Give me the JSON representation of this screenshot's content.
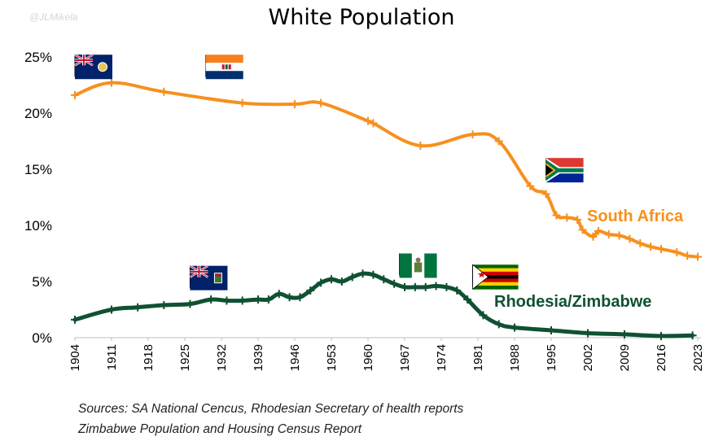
{
  "watermark": "@JLMikela",
  "sources": [
    "Sources: SA National Cencus, Rhodesian Secretary of health reports",
    "Zimbabwe Population and Housing Census Report"
  ],
  "chart_data": {
    "type": "line",
    "title": "White Population",
    "xlabel": "",
    "ylabel": "",
    "xlim": [
      1904,
      2023
    ],
    "ylim": [
      0,
      25
    ],
    "y_ticks": [
      "0%",
      "5%",
      "10%",
      "15%",
      "20%",
      "25%"
    ],
    "x_ticks": [
      "1904",
      "1911",
      "1918",
      "1925",
      "1932",
      "1939",
      "1946",
      "1953",
      "1960",
      "1967",
      "1974",
      "1981",
      "1988",
      "1995",
      "2002",
      "2009",
      "2016",
      "2023"
    ],
    "grid": false,
    "legend": "none",
    "series": [
      {
        "name": "South Africa",
        "color": "#f7901e",
        "points": [
          [
            1904,
            21.6
          ],
          [
            1911,
            22.7
          ],
          [
            1921,
            21.9
          ],
          [
            1936,
            20.9
          ],
          [
            1946,
            20.8
          ],
          [
            1951,
            20.9
          ],
          [
            1960,
            19.3
          ],
          [
            1961,
            19.1
          ],
          [
            1970,
            17.1
          ],
          [
            1980,
            18.1
          ],
          [
            1985,
            17.5
          ],
          [
            1991,
            13.5
          ],
          [
            1994,
            12.8
          ],
          [
            1996,
            10.9
          ],
          [
            1998,
            10.7
          ],
          [
            2000,
            10.5
          ],
          [
            2001,
            9.6
          ],
          [
            2003,
            9.0
          ],
          [
            2004,
            9.5
          ],
          [
            2006,
            9.2
          ],
          [
            2008,
            9.1
          ],
          [
            2010,
            8.8
          ],
          [
            2012,
            8.4
          ],
          [
            2014,
            8.1
          ],
          [
            2016,
            7.9
          ],
          [
            2019,
            7.6
          ],
          [
            2021,
            7.3
          ],
          [
            2023,
            7.2
          ]
        ]
      },
      {
        "name": "Rhodesia/Zimbabwe",
        "color": "#0f5132",
        "points": [
          [
            1904,
            1.6
          ],
          [
            1911,
            2.5
          ],
          [
            1916,
            2.7
          ],
          [
            1921,
            2.9
          ],
          [
            1926,
            3.0
          ],
          [
            1930,
            3.4
          ],
          [
            1933,
            3.3
          ],
          [
            1936,
            3.3
          ],
          [
            1939,
            3.4
          ],
          [
            1941,
            3.4
          ],
          [
            1943,
            3.9
          ],
          [
            1945,
            3.6
          ],
          [
            1947,
            3.6
          ],
          [
            1949,
            4.2
          ],
          [
            1951,
            4.9
          ],
          [
            1953,
            5.2
          ],
          [
            1955,
            5.0
          ],
          [
            1957,
            5.4
          ],
          [
            1959,
            5.7
          ],
          [
            1961,
            5.6
          ],
          [
            1963,
            5.2
          ],
          [
            1965,
            4.8
          ],
          [
            1967,
            4.5
          ],
          [
            1969,
            4.5
          ],
          [
            1971,
            4.5
          ],
          [
            1973,
            4.6
          ],
          [
            1975,
            4.5
          ],
          [
            1977,
            4.2
          ],
          [
            1979,
            3.4
          ],
          [
            1982,
            2.0
          ],
          [
            1985,
            1.2
          ],
          [
            1988,
            0.9
          ],
          [
            1995,
            0.65
          ],
          [
            2002,
            0.4
          ],
          [
            2009,
            0.3
          ],
          [
            2016,
            0.15
          ],
          [
            2022,
            0.2
          ]
        ]
      }
    ],
    "annotations": [
      "South Africa",
      "Rhodesia/Zimbabwe"
    ]
  },
  "flags": [
    {
      "name": "cape-colony-flag",
      "year": 1904,
      "value": 25.2
    },
    {
      "name": "union-of-south-africa-flag",
      "year": 1929,
      "value": 25.2
    },
    {
      "name": "south-africa-flag",
      "year": 1994,
      "value": 16.0
    },
    {
      "name": "southern-rhodesia-flag",
      "year": 1926,
      "value": 6.4
    },
    {
      "name": "rhodesia-flag",
      "year": 1966,
      "value": 7.5
    },
    {
      "name": "zimbabwe-flag",
      "year": 1980,
      "value": 6.5
    }
  ]
}
